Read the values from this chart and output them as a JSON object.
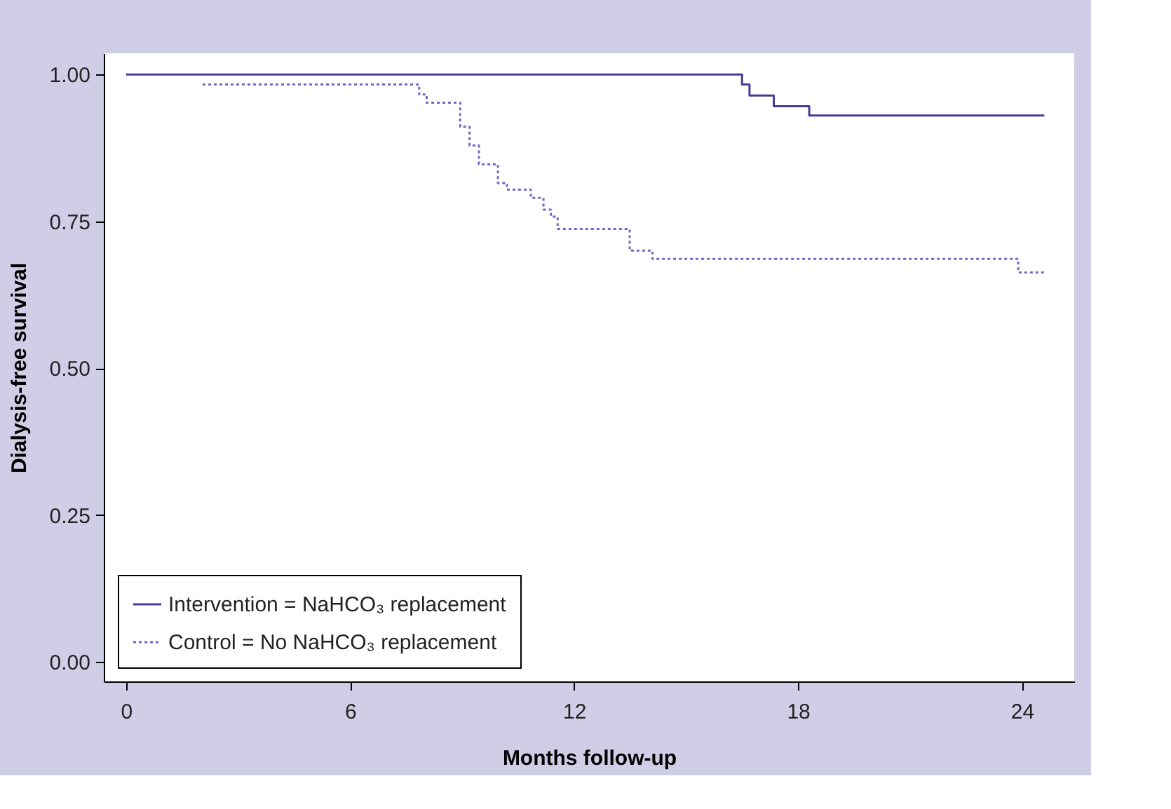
{
  "chart_data": {
    "type": "step",
    "xlabel": "Months follow-up",
    "ylabel": "Dialysis-free survival",
    "xlim": [
      -0.6,
      25.4
    ],
    "ylim": [
      -0.033,
      1.036
    ],
    "xticks": [
      0,
      6,
      12,
      18,
      24
    ],
    "yticks": [
      {
        "value": 0,
        "label": "0.00"
      },
      {
        "value": 0.25,
        "label": "0.25"
      },
      {
        "value": 0.5,
        "label": "0.50"
      },
      {
        "value": 0.75,
        "label": "0.75"
      },
      {
        "value": 1,
        "label": "1.00"
      }
    ],
    "grid": false,
    "legend": "bottom left",
    "marker": "none",
    "series": [
      {
        "name": "Intervention = NaHCO₃ replacement",
        "color": "#4b3a9c",
        "line_style": "solid",
        "x": [
          0,
          16.5,
          16.7,
          17.35,
          18.3,
          24.6
        ],
        "values": [
          1.0,
          0.983,
          0.964,
          0.946,
          0.93,
          0.93
        ]
      },
      {
        "name": "Control = No NaHCO₃ replacement",
        "color": "#6f68c4",
        "line_style": "dotted",
        "x": [
          2.05,
          7.85,
          8.05,
          8.95,
          9.2,
          9.45,
          9.96,
          10.2,
          10.84,
          11.18,
          11.38,
          11.56,
          13.49,
          14.1,
          23.9,
          24.6
        ],
        "values": [
          0.983,
          0.966,
          0.952,
          0.911,
          0.879,
          0.847,
          0.815,
          0.804,
          0.79,
          0.77,
          0.758,
          0.737,
          0.7,
          0.686,
          0.663,
          0.663
        ]
      }
    ]
  }
}
